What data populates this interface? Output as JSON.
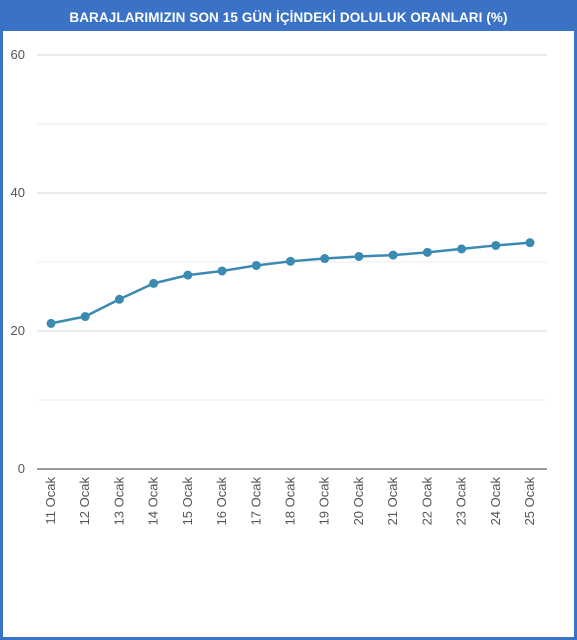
{
  "title": "BARAJLARIMIZIN SON 15 GÜN İÇİNDEKİ DOLULUK ORANLARI (%)",
  "colors": {
    "frame": "#3a73c6",
    "line": "#3b8ab2",
    "point": "#3b8ab2",
    "grid_major": "#d6d6d6",
    "grid_minor": "#ececec",
    "axis": "#333333"
  },
  "chart_data": {
    "type": "line",
    "title": "BARAJLARIMIZIN SON 15 GÜN İÇİNDEKİ DOLULUK ORANLARI (%)",
    "xlabel": "",
    "ylabel": "",
    "categories": [
      "11 Ocak",
      "12 Ocak",
      "13 Ocak",
      "14 Ocak",
      "15 Ocak",
      "16 Ocak",
      "17 Ocak",
      "18 Ocak",
      "19 Ocak",
      "20 Ocak",
      "21 Ocak",
      "22 Ocak",
      "23 Ocak",
      "24 Ocak",
      "25 Ocak"
    ],
    "series": [
      {
        "values": [
          21.1,
          22.1,
          24.6,
          26.9,
          28.1,
          28.7,
          29.5,
          30.1,
          30.5,
          30.8,
          31.0,
          31.4,
          31.9,
          32.4,
          32.8
        ]
      }
    ],
    "ylim": [
      0,
      60
    ],
    "yticks": [
      0,
      20,
      40,
      60
    ],
    "minor_grid": [
      10,
      30,
      50
    ],
    "grid": true,
    "legend": "none"
  }
}
